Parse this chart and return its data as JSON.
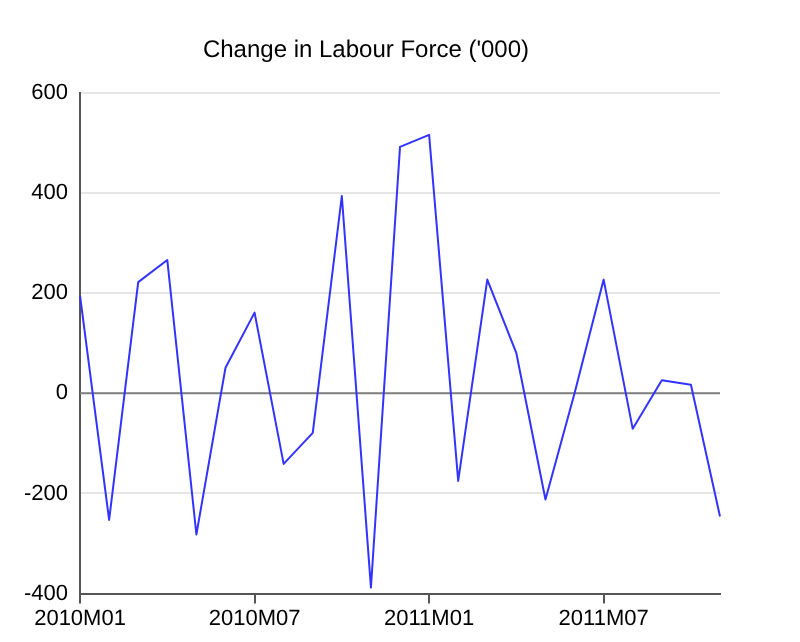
{
  "chart_data": {
    "type": "line",
    "title": "Change in Labour Force ('000)",
    "categories": [
      "2010M01",
      null,
      null,
      null,
      null,
      null,
      "2010M07",
      null,
      null,
      null,
      null,
      null,
      "2011M01",
      null,
      null,
      null,
      null,
      null,
      "2011M07",
      null,
      null,
      null,
      null
    ],
    "series": [
      {
        "color": "#3333ff",
        "values": [
          195,
          -253,
          222,
          266,
          -282,
          51,
          161,
          -141,
          -79,
          394,
          -388,
          492,
          516,
          -175,
          227,
          80,
          -212,
          0,
          227,
          -71,
          26,
          17,
          -246
        ]
      }
    ],
    "ylim": [
      -400,
      600
    ],
    "yticks": [
      -400,
      -200,
      0,
      200,
      400,
      600
    ],
    "grid": "y",
    "legend": false,
    "marker": "none",
    "line_style": "solid",
    "ref_lines": [
      {
        "axis": "y",
        "value": 0,
        "color": "#808080"
      }
    ]
  }
}
